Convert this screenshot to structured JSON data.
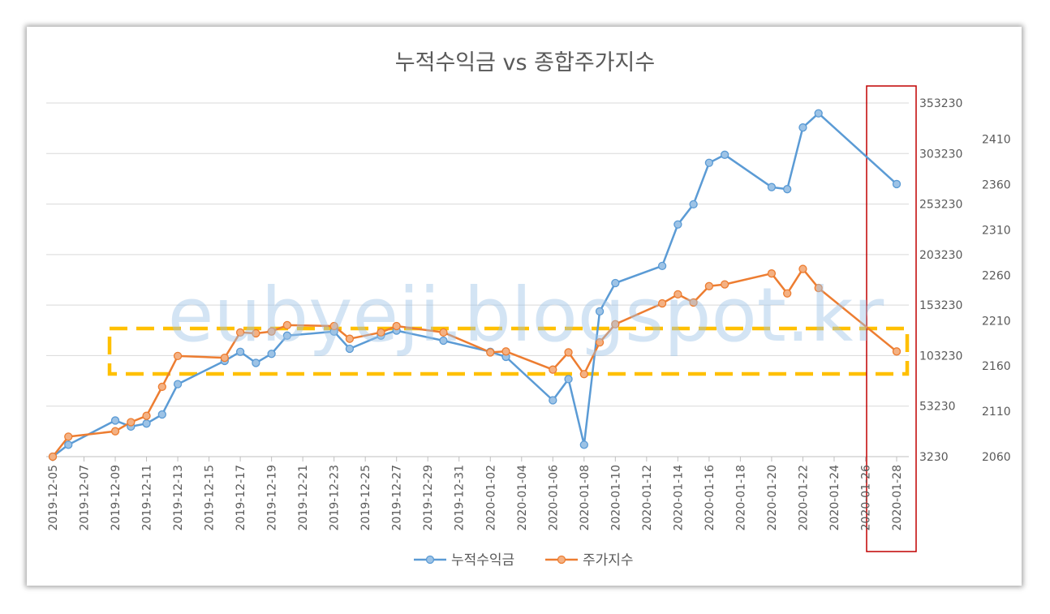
{
  "chart_data": {
    "type": "line",
    "title": "누적수익금 vs 종합주가지수",
    "watermark": "eubyeji.blogspot.kr",
    "legend_position": "bottom",
    "grid": true,
    "x_tick_labels": [
      "2019-12-05",
      "2019-12-07",
      "2019-12-09",
      "2019-12-11",
      "2019-12-13",
      "2019-12-15",
      "2019-12-17",
      "2019-12-19",
      "2019-12-21",
      "2019-12-23",
      "2019-12-25",
      "2019-12-27",
      "2019-12-29",
      "2019-12-31",
      "2020-01-02",
      "2020-01-04",
      "2020-01-06",
      "2020-01-08",
      "2020-01-10",
      "2020-01-12",
      "2020-01-14",
      "2020-01-16",
      "2020-01-18",
      "2020-01-20",
      "2020-01-22",
      "2020-01-24",
      "2020-01-26",
      "2020-01-28"
    ],
    "x_range": [
      "2019-12-05",
      "2020-01-28"
    ],
    "y_left": {
      "ticks": [
        3230,
        53230,
        103230,
        153230,
        203230,
        253230,
        303230,
        353230
      ],
      "range": [
        3230,
        353230
      ],
      "position": "right-inner"
    },
    "y_right": {
      "ticks": [
        2060,
        2110,
        2160,
        2210,
        2260,
        2310,
        2360,
        2410
      ],
      "range": [
        2060,
        2450
      ],
      "position": "right-outer"
    },
    "colors": {
      "series1": "#5b9bd5",
      "series2": "#ed7d31",
      "highlight_box": "#ffc000",
      "highlight_column": "#c00000"
    },
    "series": [
      {
        "name": "누적수익금",
        "axis": "y_left",
        "points": [
          [
            "2019-12-05",
            3230
          ],
          [
            "2019-12-06",
            15000
          ],
          [
            "2019-12-09",
            39000
          ],
          [
            "2019-12-10",
            33000
          ],
          [
            "2019-12-11",
            36000
          ],
          [
            "2019-12-12",
            45000
          ],
          [
            "2019-12-13",
            75000
          ],
          [
            "2019-12-16",
            98000
          ],
          [
            "2019-12-17",
            107000
          ],
          [
            "2019-12-18",
            96000
          ],
          [
            "2019-12-19",
            105000
          ],
          [
            "2019-12-20",
            123000
          ],
          [
            "2019-12-23",
            127000
          ],
          [
            "2019-12-24",
            110000
          ],
          [
            "2019-12-26",
            123000
          ],
          [
            "2019-12-27",
            128000
          ],
          [
            "2019-12-30",
            118000
          ],
          [
            "2020-01-02",
            107000
          ],
          [
            "2020-01-03",
            102000
          ],
          [
            "2020-01-06",
            59000
          ],
          [
            "2020-01-07",
            80000
          ],
          [
            "2020-01-08",
            15000
          ],
          [
            "2020-01-09",
            147000
          ],
          [
            "2020-01-10",
            175000
          ],
          [
            "2020-01-13",
            192000
          ],
          [
            "2020-01-14",
            233000
          ],
          [
            "2020-01-15",
            253000
          ],
          [
            "2020-01-16",
            294000
          ],
          [
            "2020-01-17",
            302000
          ],
          [
            "2020-01-20",
            270000
          ],
          [
            "2020-01-21",
            268000
          ],
          [
            "2020-01-22",
            329000
          ],
          [
            "2020-01-23",
            343000
          ],
          [
            "2020-01-28",
            273000
          ]
        ]
      },
      {
        "name": "주가지수",
        "axis": "y_right",
        "points": [
          [
            "2019-12-05",
            2060
          ],
          [
            "2019-12-06",
            2082
          ],
          [
            "2019-12-09",
            2088
          ],
          [
            "2019-12-10",
            2098
          ],
          [
            "2019-12-11",
            2105
          ],
          [
            "2019-12-12",
            2137
          ],
          [
            "2019-12-13",
            2171
          ],
          [
            "2019-12-16",
            2169
          ],
          [
            "2019-12-17",
            2197
          ],
          [
            "2019-12-18",
            2196
          ],
          [
            "2019-12-19",
            2198
          ],
          [
            "2019-12-20",
            2205
          ],
          [
            "2019-12-23",
            2204
          ],
          [
            "2019-12-24",
            2190
          ],
          [
            "2019-12-26",
            2197
          ],
          [
            "2019-12-27",
            2204
          ],
          [
            "2019-12-30",
            2197
          ],
          [
            "2020-01-02",
            2175
          ],
          [
            "2020-01-03",
            2176
          ],
          [
            "2020-01-06",
            2156
          ],
          [
            "2020-01-07",
            2175
          ],
          [
            "2020-01-08",
            2151
          ],
          [
            "2020-01-09",
            2186
          ],
          [
            "2020-01-10",
            2206
          ],
          [
            "2020-01-13",
            2229
          ],
          [
            "2020-01-14",
            2239
          ],
          [
            "2020-01-15",
            2230
          ],
          [
            "2020-01-16",
            2248
          ],
          [
            "2020-01-17",
            2250
          ],
          [
            "2020-01-20",
            2262
          ],
          [
            "2020-01-21",
            2240
          ],
          [
            "2020-01-22",
            2267
          ],
          [
            "2020-01-23",
            2246
          ],
          [
            "2020-01-28",
            2176
          ]
        ]
      }
    ]
  }
}
